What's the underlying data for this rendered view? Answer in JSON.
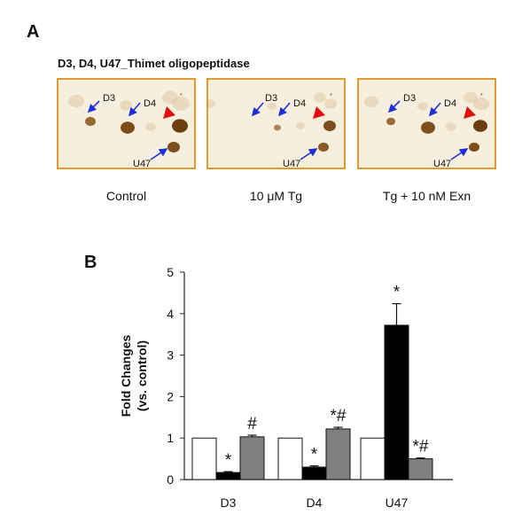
{
  "panel_a": {
    "letter": "A",
    "title": "D3, D4, U47_Thimet oligopeptidase",
    "blots": [
      {
        "caption": "Control",
        "spot_labels": [
          "D3",
          "D4",
          "U47"
        ]
      },
      {
        "caption": "10 μM Tg",
        "spot_labels": [
          "D3",
          "D4",
          "U47"
        ]
      },
      {
        "caption": "Tg + 10 nM Exn",
        "spot_labels": [
          "D3",
          "D4",
          "U47"
        ]
      }
    ],
    "colors": {
      "frame": "#e09a2e",
      "arrow": "#1f2fd6",
      "arrowhead_marker": "#e01010",
      "spot": "#8a5a1c"
    }
  },
  "panel_b": {
    "letter": "B"
  },
  "chart_data": {
    "type": "bar",
    "title": "",
    "xlabel": "",
    "ylabel": "Fold Changes (vs. control)",
    "ylabel_lines": [
      "Fold Changes",
      "(vs. control)"
    ],
    "ylim": [
      0,
      5
    ],
    "yticks": [
      0,
      1,
      2,
      3,
      4,
      5
    ],
    "categories": [
      "D3",
      "D4",
      "U47"
    ],
    "series": [
      {
        "values": [
          1.0,
          1.0,
          1.0
        ],
        "errors": [
          0,
          0,
          0
        ],
        "color": "#ffffff",
        "annotations": [
          "",
          "",
          ""
        ]
      },
      {
        "values": [
          0.17,
          0.3,
          3.72
        ],
        "errors": [
          0.02,
          0.03,
          0.52
        ],
        "color": "#000000",
        "annotations": [
          "*",
          "*",
          "*"
        ]
      },
      {
        "values": [
          1.03,
          1.22,
          0.5
        ],
        "errors": [
          0.04,
          0.04,
          0.02
        ],
        "color": "#808080",
        "annotations": [
          "#",
          "*#",
          "*#"
        ]
      }
    ],
    "grid": false,
    "legend": "none"
  }
}
